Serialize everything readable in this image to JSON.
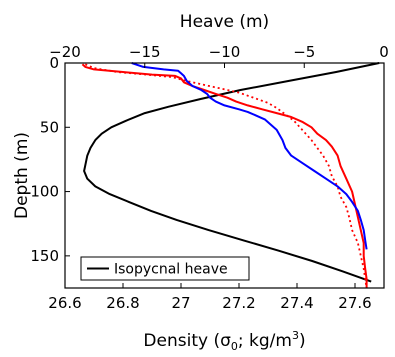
{
  "chart_data": {
    "type": "line",
    "x_bottom": {
      "label": "Density (",
      "label_sigma": "σ",
      "label_sub": "0",
      "label_units": "; kg/m",
      "label_sup": "3",
      "label_close": ")",
      "range": [
        26.6,
        27.7
      ],
      "ticks": [
        26.6,
        26.8,
        27,
        27.2,
        27.4,
        27.6
      ],
      "tick_labels": [
        "26.6",
        "26.8",
        "27",
        "27.2",
        "27.4",
        "27.6"
      ]
    },
    "x_top": {
      "label": "Heave (m)",
      "range": [
        -20,
        0
      ],
      "ticks": [
        -20,
        -15,
        -10,
        -5,
        0
      ],
      "tick_labels": [
        "−20",
        "−15",
        "−10",
        "−5",
        "0"
      ]
    },
    "y": {
      "label": "Depth (m)",
      "range": [
        0,
        175
      ],
      "inverted": true,
      "ticks": [
        0,
        50,
        100,
        150
      ],
      "tick_labels": [
        "0",
        "50",
        "100",
        "150"
      ]
    },
    "legend": {
      "placement": "bottom-left",
      "entries": [
        "Isopycnal heave"
      ]
    },
    "series": [
      {
        "axis": "top",
        "color": "#000000",
        "style": "solid",
        "points": [
          [
            -0.3,
            0
          ],
          [
            -3,
            7
          ],
          [
            -6,
            14
          ],
          [
            -9,
            21
          ],
          [
            -11.5,
            28
          ],
          [
            -13.5,
            34
          ],
          [
            -15,
            39
          ],
          [
            -16.2,
            45
          ],
          [
            -17.1,
            50
          ],
          [
            -17.7,
            55
          ],
          [
            -18.1,
            60
          ],
          [
            -18.4,
            66
          ],
          [
            -18.6,
            72
          ],
          [
            -18.7,
            78
          ],
          [
            -18.8,
            84
          ],
          [
            -18.6,
            90
          ],
          [
            -18.1,
            96
          ],
          [
            -17.2,
            102
          ],
          [
            -16,
            108
          ],
          [
            -14.6,
            115
          ],
          [
            -13,
            122
          ],
          [
            -11,
            130
          ],
          [
            -8.8,
            138
          ],
          [
            -6.6,
            146
          ],
          [
            -4.5,
            154
          ],
          [
            -2.6,
            162
          ],
          [
            -0.8,
            170
          ]
        ]
      },
      {
        "axis": "bottom",
        "color": "#ff0000",
        "style": "solid",
        "points": [
          [
            26.66,
            1
          ],
          [
            26.67,
            3
          ],
          [
            26.7,
            5
          ],
          [
            26.8,
            7
          ],
          [
            26.9,
            9
          ],
          [
            26.98,
            10
          ],
          [
            27,
            12
          ],
          [
            27.01,
            15
          ],
          [
            27.04,
            18
          ],
          [
            27.08,
            21
          ],
          [
            27.12,
            24
          ],
          [
            27.16,
            27
          ],
          [
            27.19,
            30
          ],
          [
            27.23,
            33
          ],
          [
            27.28,
            36
          ],
          [
            27.33,
            39
          ],
          [
            27.38,
            42
          ],
          [
            27.42,
            46
          ],
          [
            27.45,
            50
          ],
          [
            27.47,
            55
          ],
          [
            27.5,
            60
          ],
          [
            27.52,
            65
          ],
          [
            27.54,
            72
          ],
          [
            27.55,
            80
          ],
          [
            27.57,
            90
          ],
          [
            27.59,
            100
          ],
          [
            27.6,
            110
          ],
          [
            27.61,
            120
          ],
          [
            27.62,
            130
          ],
          [
            27.63,
            140
          ],
          [
            27.63,
            150
          ],
          [
            27.635,
            160
          ],
          [
            27.64,
            168
          ],
          [
            27.64,
            175
          ]
        ]
      },
      {
        "axis": "bottom",
        "color": "#ff0000",
        "style": "dotted",
        "points": [
          [
            26.67,
            1
          ],
          [
            26.7,
            4
          ],
          [
            26.78,
            7
          ],
          [
            26.88,
            9
          ],
          [
            26.97,
            11
          ],
          [
            27.02,
            14
          ],
          [
            27.08,
            17
          ],
          [
            27.14,
            20
          ],
          [
            27.2,
            23
          ],
          [
            27.25,
            27
          ],
          [
            27.3,
            31
          ],
          [
            27.33,
            35
          ],
          [
            27.36,
            40
          ],
          [
            27.39,
            45
          ],
          [
            27.41,
            50
          ],
          [
            27.43,
            55
          ],
          [
            27.45,
            60
          ],
          [
            27.47,
            66
          ],
          [
            27.49,
            72
          ],
          [
            27.51,
            80
          ],
          [
            27.52,
            88
          ],
          [
            27.54,
            96
          ],
          [
            27.55,
            104
          ],
          [
            27.57,
            112
          ],
          [
            27.58,
            120
          ],
          [
            27.59,
            130
          ],
          [
            27.61,
            140
          ],
          [
            27.62,
            150
          ],
          [
            27.63,
            160
          ],
          [
            27.635,
            168
          ],
          [
            27.64,
            175
          ]
        ]
      },
      {
        "axis": "bottom",
        "color": "#0000ff",
        "style": "solid",
        "points": [
          [
            26.83,
            0
          ],
          [
            26.87,
            3
          ],
          [
            26.94,
            5
          ],
          [
            26.99,
            6
          ],
          [
            27.0,
            8
          ],
          [
            27.01,
            10
          ],
          [
            27.02,
            14
          ],
          [
            27.04,
            18
          ],
          [
            27.07,
            21
          ],
          [
            27.09,
            24
          ],
          [
            27.1,
            27
          ],
          [
            27.12,
            30
          ],
          [
            27.15,
            33
          ],
          [
            27.2,
            36
          ],
          [
            27.23,
            38
          ],
          [
            27.26,
            41
          ],
          [
            27.29,
            44
          ],
          [
            27.31,
            48
          ],
          [
            27.33,
            52
          ],
          [
            27.34,
            56
          ],
          [
            27.35,
            60
          ],
          [
            27.36,
            66
          ],
          [
            27.38,
            72
          ],
          [
            27.42,
            78
          ],
          [
            27.46,
            84
          ],
          [
            27.5,
            90
          ],
          [
            27.54,
            96
          ],
          [
            27.57,
            102
          ],
          [
            27.59,
            108
          ],
          [
            27.61,
            115
          ],
          [
            27.62,
            122
          ],
          [
            27.63,
            130
          ],
          [
            27.635,
            138
          ],
          [
            27.64,
            145
          ]
        ]
      }
    ]
  }
}
